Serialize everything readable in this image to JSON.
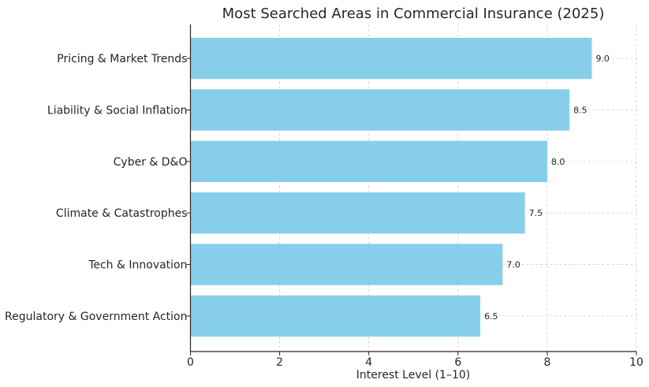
{
  "chart_data": {
    "type": "bar",
    "orientation": "horizontal",
    "title": "Most Searched Areas in Commercial Insurance (2025)",
    "xlabel": "Interest Level (1–10)",
    "ylabel": "",
    "categories": [
      "Pricing & Market Trends",
      "Liability & Social Inflation",
      "Cyber & D&O",
      "Climate & Catastrophes",
      "Tech & Innovation",
      "Regulatory & Government Action"
    ],
    "values": [
      9.0,
      8.5,
      8.0,
      7.5,
      7.0,
      6.5
    ],
    "data_labels": [
      "9.0",
      "8.5",
      "8.0",
      "7.5",
      "7.0",
      "6.5"
    ],
    "xlim": [
      0,
      10
    ],
    "xticks": [
      0,
      2,
      4,
      6,
      8,
      10
    ],
    "grid": true,
    "bar_color": "#87ceeb"
  }
}
